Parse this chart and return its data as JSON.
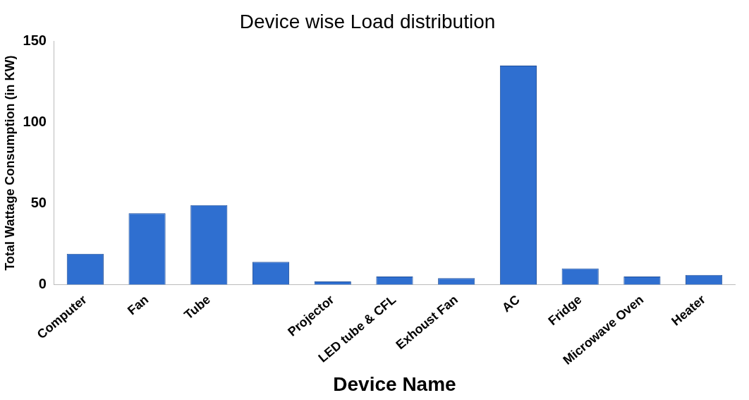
{
  "chart_data": {
    "type": "bar",
    "title": "Device wise Load distribution",
    "xlabel": "Device Name",
    "ylabel": "Total Wattage Consumption (in KW)",
    "categories": [
      "Computer",
      "Fan",
      "Tube",
      null,
      "Projector",
      "LED tube & CFL",
      "Exhoust Fan",
      "AC",
      "Fridge",
      "Microwave Oven",
      "Heater"
    ],
    "values": [
      19,
      44,
      49,
      14,
      2,
      5,
      4,
      135,
      10,
      5,
      6
    ],
    "color": "#2f6fd0",
    "ylim": [
      0,
      150
    ],
    "yticks": [
      0,
      50,
      100,
      150
    ],
    "grid": false,
    "legend": false
  }
}
